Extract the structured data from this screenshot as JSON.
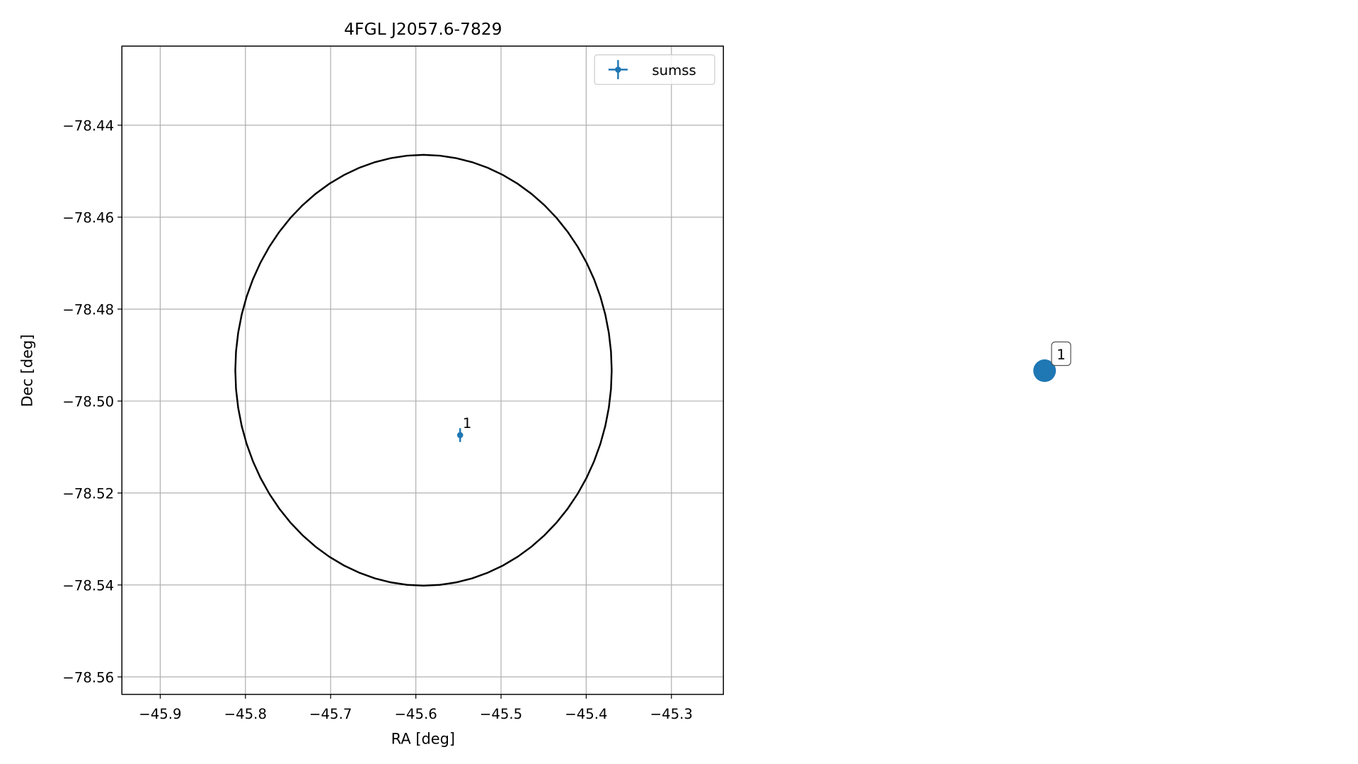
{
  "chart_data": [
    {
      "type": "scatter",
      "title": "4FGL J2057.6-7829",
      "xlabel": "RA [deg]",
      "ylabel": "Dec [deg]",
      "xlim": [
        -45.945,
        -45.239
      ],
      "ylim": [
        -78.5638,
        -78.4228
      ],
      "xticks": [
        {
          "value": -45.9,
          "label": "−45.9"
        },
        {
          "value": -45.8,
          "label": "−45.8"
        },
        {
          "value": -45.7,
          "label": "−45.7"
        },
        {
          "value": -45.6,
          "label": "−45.6"
        },
        {
          "value": -45.5,
          "label": "−45.5"
        },
        {
          "value": -45.4,
          "label": "−45.4"
        },
        {
          "value": -45.3,
          "label": "−45.3"
        }
      ],
      "yticks": [
        {
          "value": -78.44,
          "label": "−78.44"
        },
        {
          "value": -78.46,
          "label": "−78.46"
        },
        {
          "value": -78.48,
          "label": "−78.48"
        },
        {
          "value": -78.5,
          "label": "−78.50"
        },
        {
          "value": -78.52,
          "label": "−78.52"
        },
        {
          "value": -78.54,
          "label": "−78.54"
        },
        {
          "value": -78.56,
          "label": "−78.56"
        }
      ],
      "grid": true,
      "legend": "upper right",
      "series": [
        {
          "name": "sumss",
          "color": "#1f77b4",
          "x": [
            -45.548
          ],
          "values": [
            -78.5074
          ],
          "xerr": [
            0.001
          ],
          "yerr": [
            0.0015
          ],
          "labels": [
            "1"
          ]
        }
      ],
      "ellipse": {
        "center": [
          -45.591,
          -78.4933
        ],
        "semi_axes": [
          0.2209,
          0.04685
        ],
        "color": "#000000"
      }
    },
    {
      "type": "marker",
      "color": "#1f77b4",
      "labels": [
        "1"
      ]
    }
  ]
}
